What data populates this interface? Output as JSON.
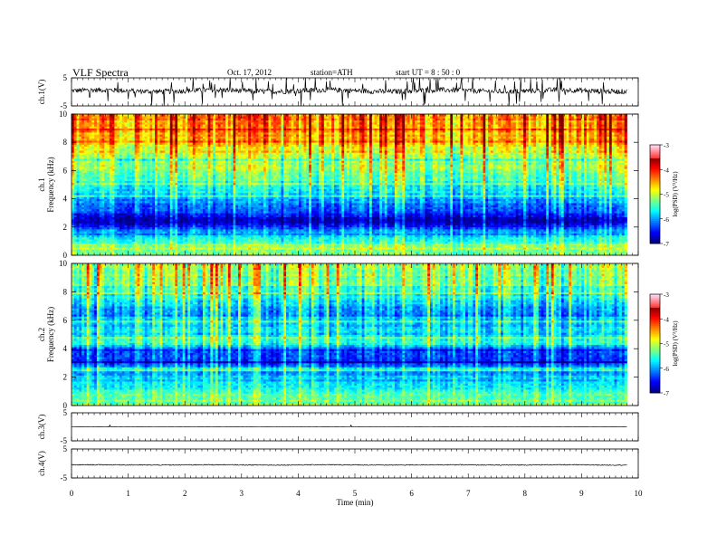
{
  "header": {
    "title": "VLF  Spectra",
    "date": "Oct. 17, 2012",
    "station": "station=ATH",
    "start": "start  UT  =    8  : 50 : 0"
  },
  "chart_data": [
    {
      "type": "line",
      "ylabel": "ch.1(V)",
      "ylim": [
        -5,
        5
      ],
      "yticks": [
        "5",
        "-5"
      ],
      "baseline": 0.4,
      "noise": 0.9,
      "spikes": "frequent"
    },
    {
      "type": "heatmap",
      "ylabel": "ch.1 Frequency  (kHz)",
      "ylim": [
        0,
        10
      ],
      "yticks": [
        "0",
        "2",
        "4",
        "6",
        "8",
        "10"
      ],
      "colorbar": {
        "label": "log(PSD) (V²/Hz)",
        "ticks": [
          "-3",
          "-4",
          "-5",
          "-6",
          "-7"
        ],
        "range": [
          -7,
          -3
        ]
      },
      "band_profile_log_psd": [
        {
          "freq_khz": 0.0,
          "value": -5.2
        },
        {
          "freq_khz": 0.6,
          "value": -4.8
        },
        {
          "freq_khz": 1.2,
          "value": -5.6
        },
        {
          "freq_khz": 2.0,
          "value": -6.3
        },
        {
          "freq_khz": 2.5,
          "value": -6.8
        },
        {
          "freq_khz": 3.0,
          "value": -6.4
        },
        {
          "freq_khz": 3.8,
          "value": -6.0
        },
        {
          "freq_khz": 4.5,
          "value": -5.6
        },
        {
          "freq_khz": 5.5,
          "value": -5.1
        },
        {
          "freq_khz": 7.0,
          "value": -4.8
        },
        {
          "freq_khz": 8.5,
          "value": -4.2
        },
        {
          "freq_khz": 10.0,
          "value": -4.0
        }
      ]
    },
    {
      "type": "heatmap",
      "ylabel": "ch.2 Frequency  (kHz)",
      "ylim": [
        0,
        10
      ],
      "yticks": [
        "0",
        "2",
        "4",
        "6",
        "8",
        "10"
      ],
      "colorbar": {
        "label": "log(PSD) (V²/Hz)",
        "ticks": [
          "-3",
          "-4",
          "-5",
          "-6",
          "-7"
        ],
        "range": [
          -7,
          -3
        ]
      },
      "band_profile_log_psd": [
        {
          "freq_khz": 0.0,
          "value": -5.4
        },
        {
          "freq_khz": 0.6,
          "value": -5.0
        },
        {
          "freq_khz": 1.2,
          "value": -5.6
        },
        {
          "freq_khz": 2.5,
          "value": -5.9
        },
        {
          "freq_khz": 3.5,
          "value": -6.5
        },
        {
          "freq_khz": 4.5,
          "value": -5.4
        },
        {
          "freq_khz": 5.5,
          "value": -5.7
        },
        {
          "freq_khz": 6.5,
          "value": -6.0
        },
        {
          "freq_khz": 7.5,
          "value": -5.5
        },
        {
          "freq_khz": 8.5,
          "value": -5.1
        },
        {
          "freq_khz": 10.0,
          "value": -4.9
        }
      ]
    },
    {
      "type": "line",
      "ylabel": "ch.3(V)",
      "ylim": [
        -5,
        5
      ],
      "yticks": [
        "5",
        "-5"
      ],
      "baseline": 0.0,
      "noise": 0.02,
      "spikes": "rare"
    },
    {
      "type": "line",
      "ylabel": "ch.4(V)",
      "ylim": [
        -5,
        5
      ],
      "yticks": [
        "5",
        "-5"
      ],
      "baseline": -0.5,
      "noise": 0.15,
      "spikes": "none"
    }
  ],
  "xaxis": {
    "label": "Time  (min)",
    "range": [
      0,
      10
    ],
    "ticks": [
      "0",
      "1",
      "2",
      "3",
      "4",
      "5",
      "6",
      "7",
      "8",
      "9",
      "10"
    ],
    "data_end_min": 9.8
  }
}
